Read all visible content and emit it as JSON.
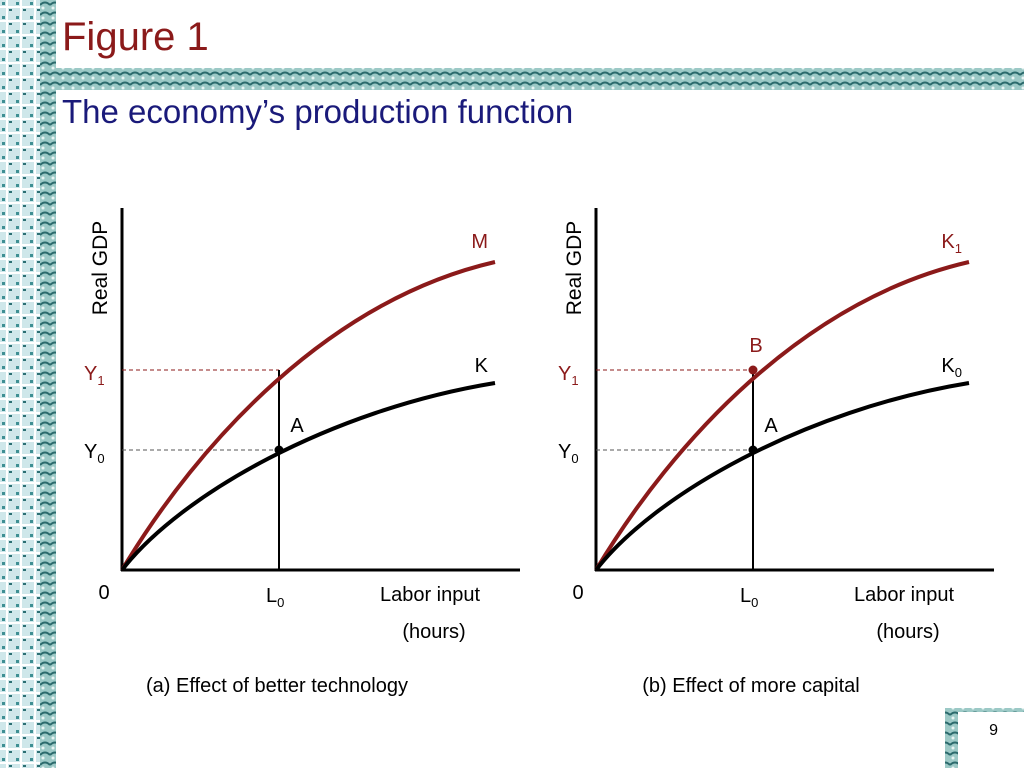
{
  "header": {
    "title": "Figure 1",
    "subtitle": "The economy’s production function"
  },
  "panels": [
    {
      "y_axis_label": "Real GDP",
      "x_axis_label": [
        "Labor input",
        "(hours)"
      ],
      "origin": "0",
      "x_marker": {
        "base": "L",
        "sub": "0"
      },
      "y_markers": [
        {
          "base": "Y",
          "sub": "1"
        },
        {
          "base": "Y",
          "sub": "0"
        }
      ],
      "curves": [
        {
          "base": "M",
          "sub": ""
        },
        {
          "base": "K",
          "sub": ""
        }
      ],
      "points": [
        "A"
      ],
      "caption": "(a) Effect of better technology"
    },
    {
      "y_axis_label": "Real GDP",
      "x_axis_label": [
        "Labor input",
        "(hours)"
      ],
      "origin": "0",
      "x_marker": {
        "base": "L",
        "sub": "0"
      },
      "y_markers": [
        {
          "base": "Y",
          "sub": "1"
        },
        {
          "base": "Y",
          "sub": "0"
        }
      ],
      "curves": [
        {
          "base": "K",
          "sub": "1"
        },
        {
          "base": "K",
          "sub": "0"
        }
      ],
      "points": [
        "B",
        "A"
      ],
      "caption": "(b) Effect of more capital"
    }
  ],
  "page_number": "9"
}
